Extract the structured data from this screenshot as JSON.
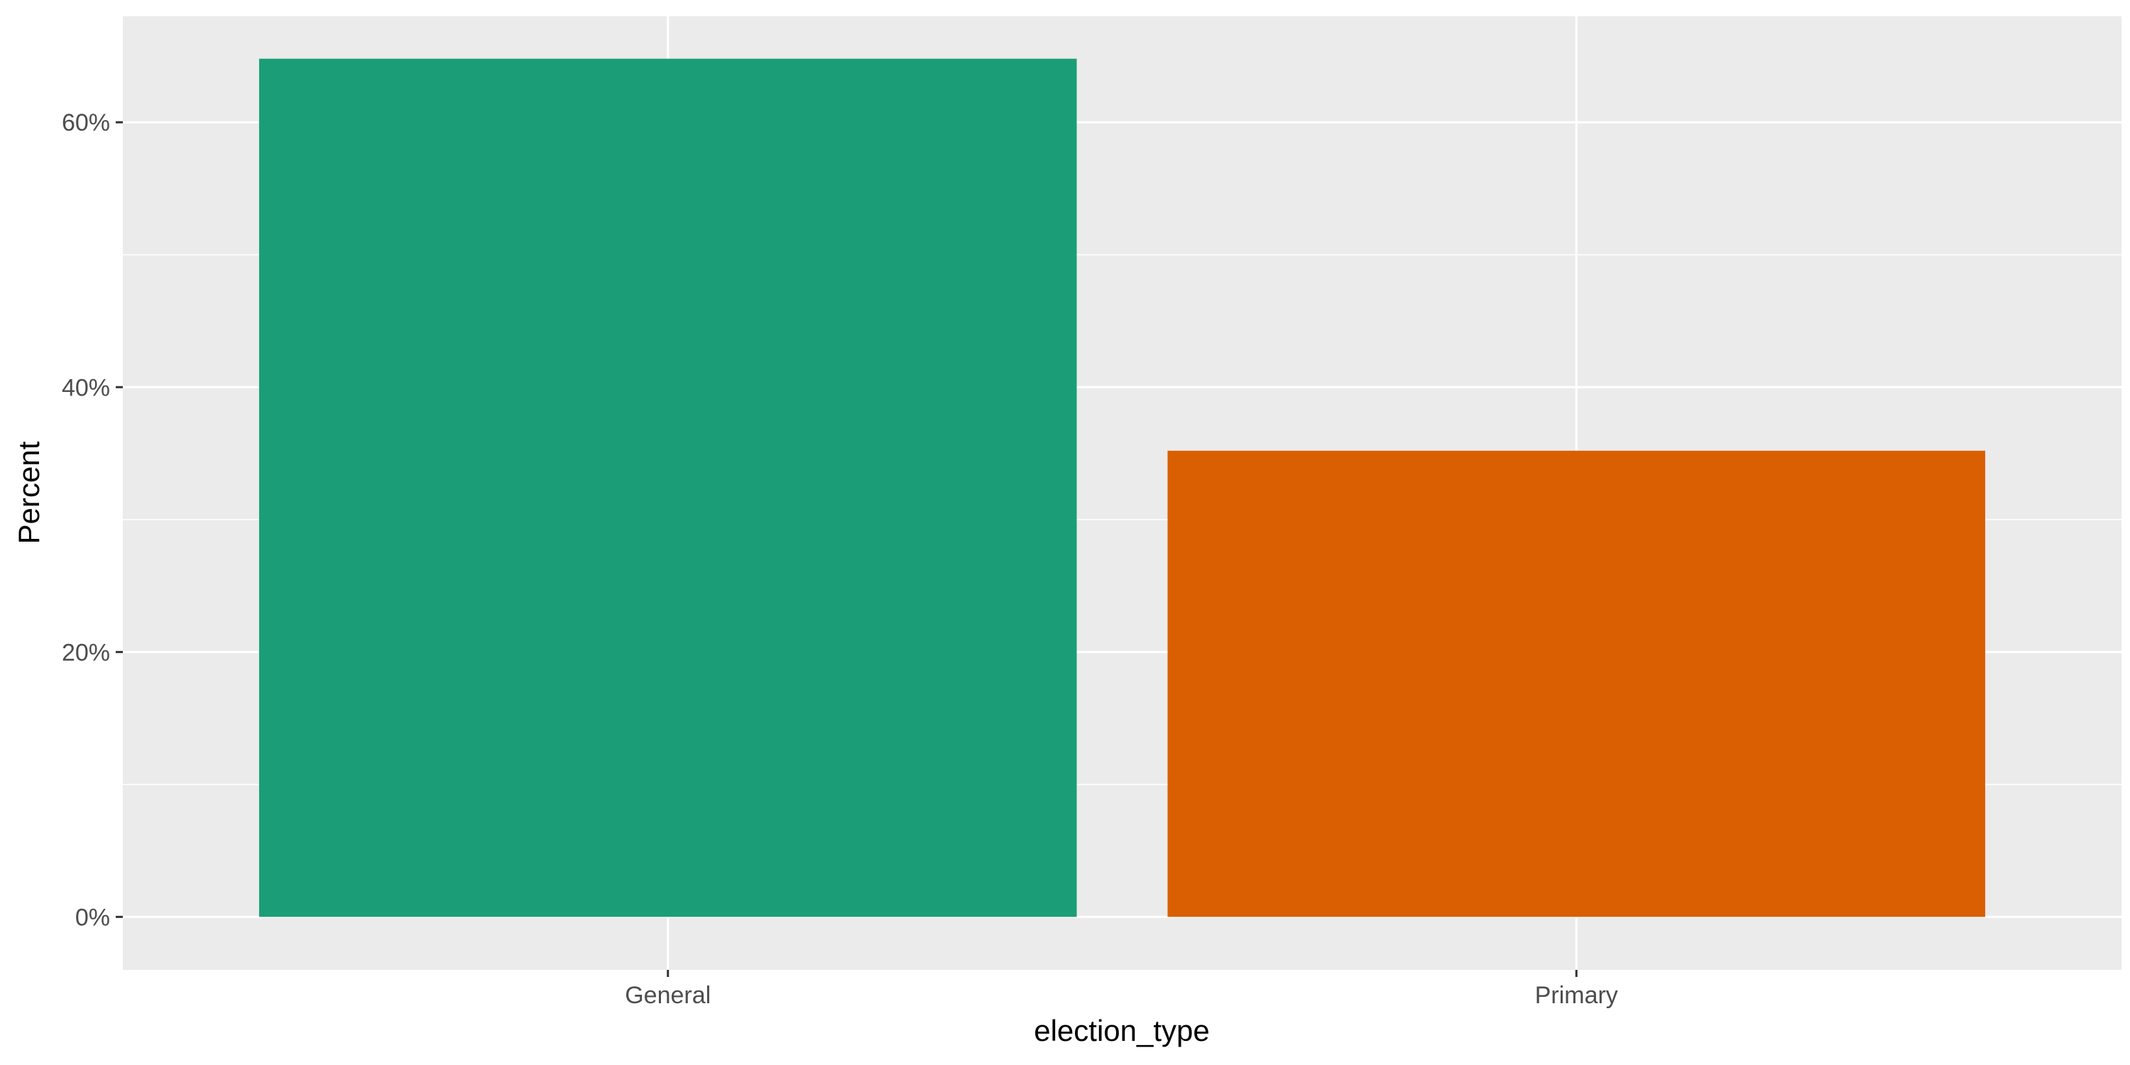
{
  "chart_data": {
    "type": "bar",
    "title": "",
    "xlabel": "election_type",
    "ylabel": "Percent",
    "categories": [
      "General",
      "Primary"
    ],
    "values": [
      0.648,
      0.352
    ],
    "ylim": [
      -0.04,
      0.68
    ],
    "y_ticks": [
      0,
      0.2,
      0.4,
      0.6
    ],
    "y_tick_labels": [
      "0%",
      "20%",
      "40%",
      "60%"
    ],
    "grid": true,
    "legend": "none",
    "colors": {
      "bars": [
        "#1b9e77",
        "#d95f02"
      ],
      "panel": "#ebebeb",
      "grid": "#ffffff",
      "tick": "#333333",
      "tick_text": "#4d4d4d"
    }
  }
}
